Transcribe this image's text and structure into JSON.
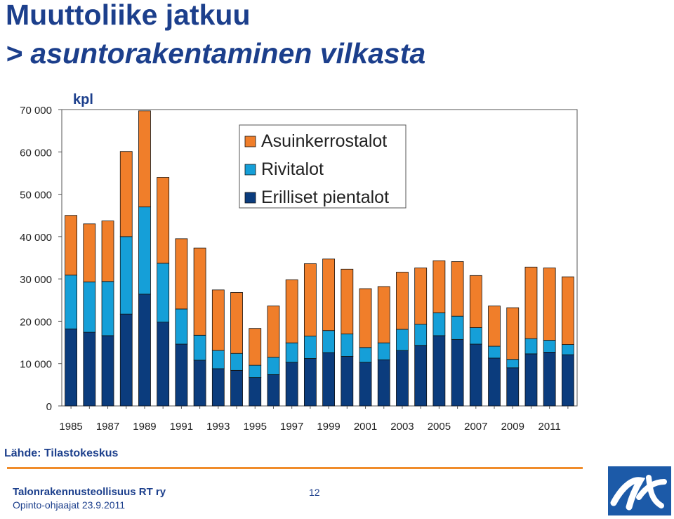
{
  "title": {
    "line1": "Muuttoliike jatkuu",
    "line2": "> asuntorakentaminen vilkasta"
  },
  "source": "Lähde: Tilastokeskus",
  "footer": {
    "org": "Talonrakennusteollisuus RT ry",
    "sub": "Opinto-ohjaajat 23.9.2011",
    "page": "12"
  },
  "colors": {
    "asuinkerrostalot": "#f07e2a",
    "rivitalot": "#159fd8",
    "erilliset": "#0b3c7d",
    "title": "#1c3f8c",
    "accent_line": "#f08c2a"
  },
  "logo": {
    "icon": "rt-logo-icon"
  },
  "chart_data": {
    "type": "bar",
    "stacked": true,
    "unit_label": "kpl",
    "ylim": [
      0,
      70000
    ],
    "yticks": [
      {
        "value": 0,
        "label": "0"
      },
      {
        "value": 10000,
        "label": "10 000"
      },
      {
        "value": 20000,
        "label": "20 000"
      },
      {
        "value": 30000,
        "label": "30 000"
      },
      {
        "value": 40000,
        "label": "40 000"
      },
      {
        "value": 50000,
        "label": "50 000"
      },
      {
        "value": 60000,
        "label": "60 000"
      },
      {
        "value": 70000,
        "label": "70 000"
      }
    ],
    "categories": [
      "1985",
      "1986",
      "1987",
      "1988",
      "1989",
      "1990",
      "1991",
      "1992",
      "1993",
      "1994",
      "1995",
      "1996",
      "1997",
      "1998",
      "1999",
      "2000",
      "2001",
      "2002",
      "2003",
      "2004",
      "2005",
      "2006",
      "2007",
      "2008",
      "2009",
      "2010",
      "2011",
      "2012"
    ],
    "xtick_labels": [
      "1985",
      "1987",
      "1989",
      "1991",
      "1993",
      "1995",
      "1997",
      "1999",
      "2001",
      "2003",
      "2005",
      "2007",
      "2009",
      "2011"
    ],
    "legend_position": "top-center",
    "series": [
      {
        "name": "Erilliset pientalot",
        "color_key": "erilliset",
        "values": [
          18200,
          17400,
          16600,
          21700,
          26400,
          19800,
          14600,
          10800,
          8800,
          8400,
          6700,
          7400,
          10300,
          11200,
          12600,
          11700,
          10300,
          10900,
          13100,
          14300,
          16600,
          15700,
          14600,
          11300,
          9000,
          12300,
          12700,
          12100
        ]
      },
      {
        "name": "Rivitalot",
        "color_key": "rivitalot",
        "values": [
          12700,
          11900,
          12800,
          18300,
          20600,
          13900,
          8300,
          5900,
          4300,
          4000,
          2900,
          4100,
          4600,
          5300,
          5200,
          5300,
          3500,
          4000,
          5000,
          5000,
          5400,
          5500,
          3900,
          2800,
          2000,
          3600,
          2800,
          2400
        ]
      },
      {
        "name": "Asuinkerrostalot",
        "color_key": "asuinkerrostalot",
        "values": [
          14100,
          13700,
          14300,
          20100,
          22700,
          20300,
          16600,
          20600,
          14300,
          14400,
          8700,
          12100,
          14900,
          17100,
          16900,
          15300,
          13900,
          13300,
          13500,
          13300,
          12300,
          12900,
          12300,
          9500,
          12200,
          16900,
          17100,
          16000
        ]
      }
    ]
  }
}
